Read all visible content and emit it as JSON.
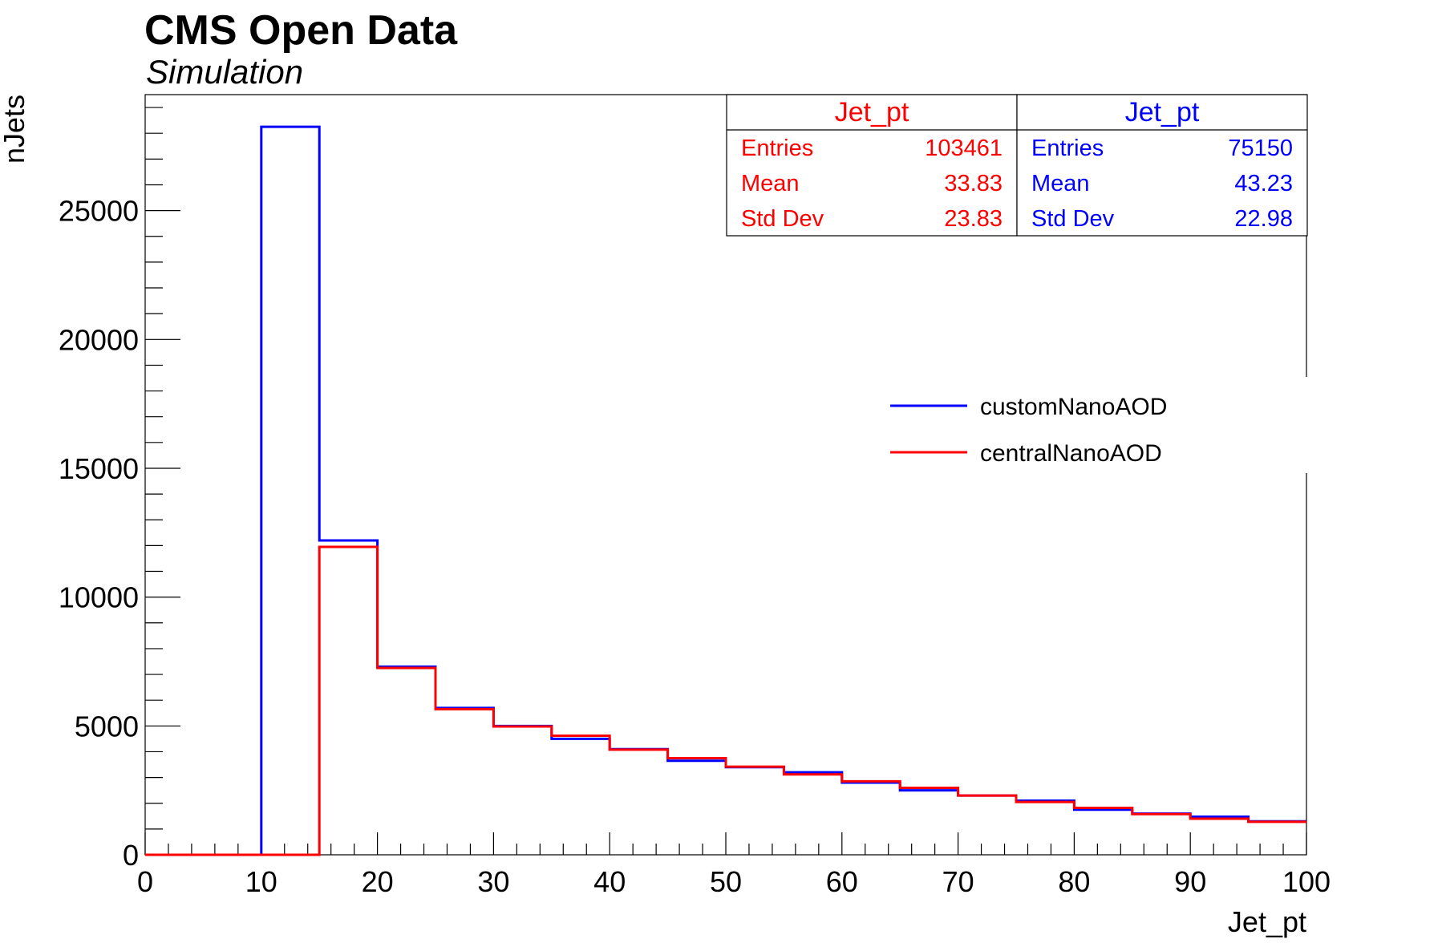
{
  "header": {
    "title": "CMS Open Data",
    "subtitle": "Simulation"
  },
  "stats": [
    {
      "title": "Jet_pt",
      "color": "#ff0000",
      "rows": [
        {
          "label": "Entries",
          "value": "103461"
        },
        {
          "label": "Mean",
          "value": "33.83"
        },
        {
          "label": "Std Dev",
          "value": "23.83"
        }
      ]
    },
    {
      "title": "Jet_pt",
      "color": "#0000ff",
      "rows": [
        {
          "label": "Entries",
          "value": "75150"
        },
        {
          "label": "Mean",
          "value": "43.23"
        },
        {
          "label": "Std Dev",
          "value": "22.98"
        }
      ]
    }
  ],
  "chart_data": {
    "type": "histogram",
    "title": "",
    "xlabel": "Jet_pt",
    "ylabel": "nJets",
    "xlim": [
      0,
      100
    ],
    "ylim": [
      0,
      29500
    ],
    "x_ticks": [
      0,
      10,
      20,
      30,
      40,
      50,
      60,
      70,
      80,
      90,
      100
    ],
    "y_ticks": [
      0,
      5000,
      10000,
      15000,
      20000,
      25000
    ],
    "bin_edges": [
      0,
      5,
      10,
      15,
      20,
      25,
      30,
      35,
      40,
      45,
      50,
      55,
      60,
      65,
      70,
      75,
      80,
      85,
      90,
      95,
      100
    ],
    "series": [
      {
        "name": "customNanoAOD",
        "color": "#0000ff",
        "values": [
          0,
          0,
          28250,
          12200,
          7300,
          5700,
          5000,
          4500,
          4100,
          3650,
          3400,
          3200,
          2800,
          2500,
          2300,
          2100,
          1750,
          1600,
          1480,
          1300
        ]
      },
      {
        "name": "centralNanoAOD",
        "color": "#ff0000",
        "values": [
          0,
          0,
          0,
          11950,
          7250,
          5650,
          4980,
          4620,
          4080,
          3750,
          3420,
          3120,
          2850,
          2600,
          2300,
          2050,
          1820,
          1580,
          1400,
          1280
        ]
      }
    ],
    "grid": false,
    "legend_position": "right"
  }
}
